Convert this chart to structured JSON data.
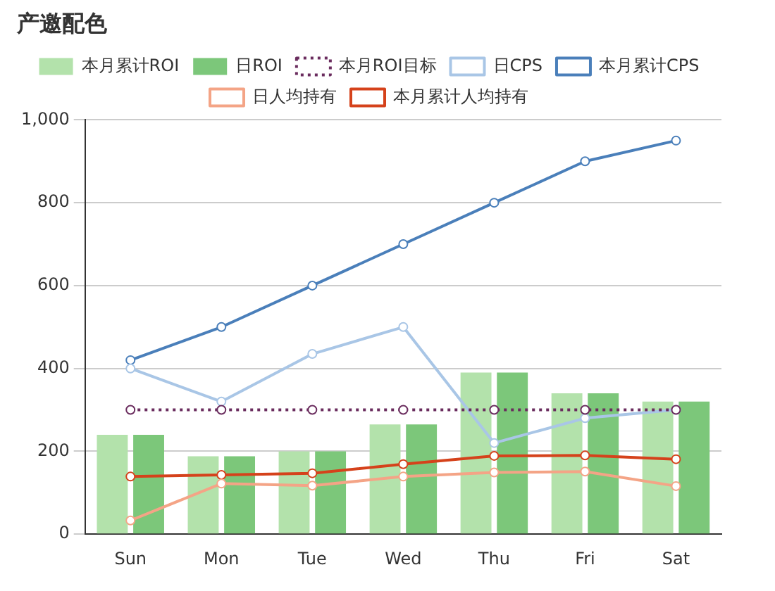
{
  "chart_data": {
    "type": "bar",
    "title": "产邀配色",
    "categories": [
      "Sun",
      "Mon",
      "Tue",
      "Wed",
      "Thu",
      "Fri",
      "Sat"
    ],
    "series": [
      {
        "name": "本月累计ROI",
        "color": "#b3e2ab",
        "values": [
          240,
          188,
          200,
          265,
          390,
          340,
          320
        ]
      },
      {
        "name": "日ROI",
        "color": "#7cc77a",
        "values": [
          240,
          188,
          200,
          265,
          390,
          340,
          320
        ]
      },
      {
        "name": "本月ROI目标",
        "type": "line",
        "color": "#6a2c5e",
        "line_style": "dotted",
        "values": [
          300,
          300,
          300,
          300,
          300,
          300,
          300
        ]
      },
      {
        "name": "日CPS",
        "type": "line",
        "color": "#a9c6e6",
        "values": [
          400,
          320,
          435,
          500,
          220,
          280,
          300
        ]
      },
      {
        "name": "本月累计CPS",
        "type": "line",
        "color": "#4a7fba",
        "values": [
          420,
          500,
          600,
          700,
          800,
          900,
          950
        ]
      },
      {
        "name": "日人均持有",
        "type": "line",
        "color": "#f4a486",
        "values": [
          33,
          122,
          117,
          139,
          149,
          151,
          116
        ]
      },
      {
        "name": "本月累计人均持有",
        "type": "line",
        "color": "#d5421b",
        "values": [
          139,
          143,
          147,
          169,
          189,
          190,
          181
        ]
      }
    ],
    "ylim": [
      0,
      1000
    ],
    "yticks": [
      {
        "value": 0,
        "label": "0"
      },
      {
        "value": 200,
        "label": "200"
      },
      {
        "value": 400,
        "label": "400"
      },
      {
        "value": 600,
        "label": "600"
      },
      {
        "value": 800,
        "label": "800"
      },
      {
        "value": 1000,
        "label": "1,000"
      }
    ],
    "grid": "y",
    "legend": "top",
    "marker": "circle"
  }
}
